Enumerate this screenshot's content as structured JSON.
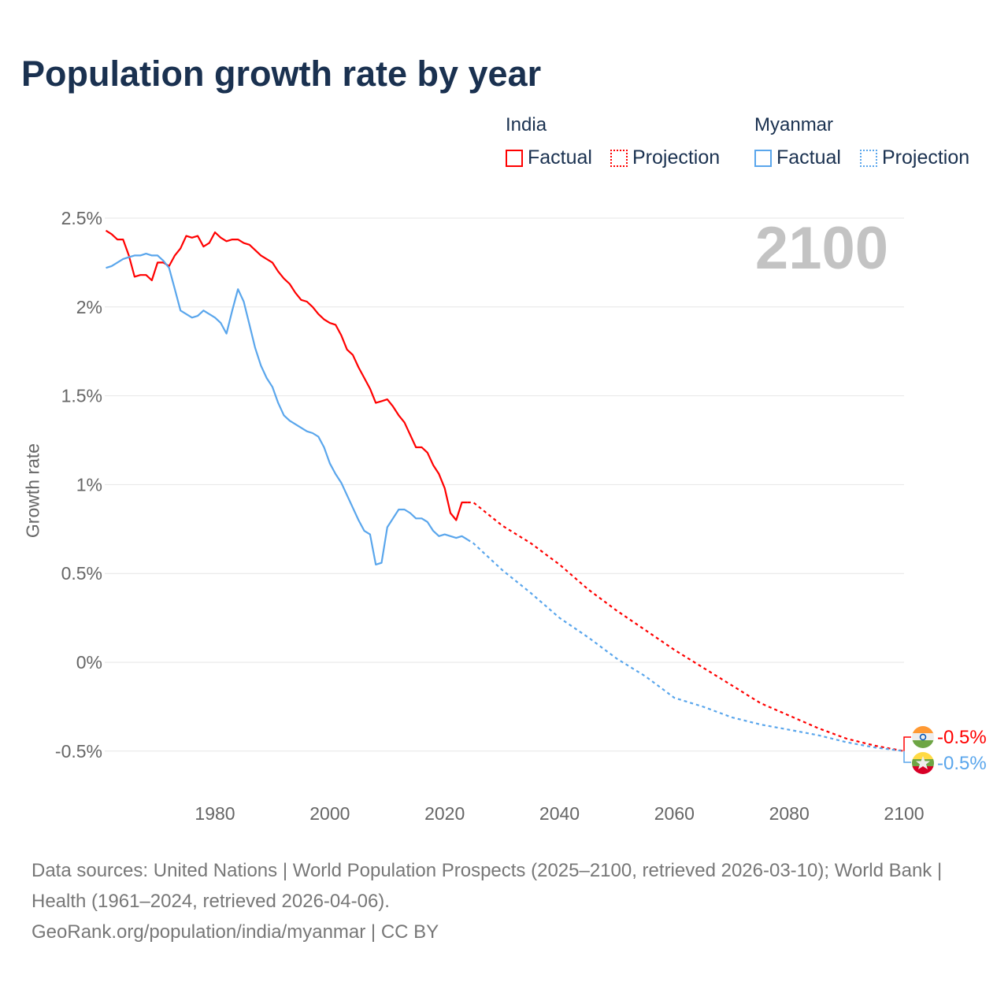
{
  "title": "Population growth rate by year",
  "year_label": "2100",
  "legend": {
    "groups": [
      {
        "name": "India",
        "factual": "Factual",
        "projection": "Projection",
        "color": "#ff0000"
      },
      {
        "name": "Myanmar",
        "factual": "Factual",
        "projection": "Projection",
        "color": "#5aa6ec"
      }
    ]
  },
  "end_labels": {
    "india": "-0.5%",
    "myanmar": "-0.5%"
  },
  "footer": {
    "line1": "Data sources: United Nations | World Population Prospects (2025–2100, retrieved 2026-03-10); World Bank | Health (1961–2024, retrieved 2026-04-06).",
    "line2": "GeoRank.org/population/india/myanmar | CC BY"
  },
  "chart_data": {
    "type": "line",
    "title": "Population growth rate by year",
    "ylabel": "Growth rate",
    "xlabel": "",
    "xlim": [
      1961,
      2100
    ],
    "ylim": [
      -0.7,
      2.6
    ],
    "x_ticks": [
      1980,
      2000,
      2020,
      2040,
      2060,
      2080,
      2100
    ],
    "y_ticks": [
      {
        "v": 2.5,
        "l": "2.5%"
      },
      {
        "v": 2,
        "l": "2%"
      },
      {
        "v": 1.5,
        "l": "1.5%"
      },
      {
        "v": 1,
        "l": "1%"
      },
      {
        "v": 0.5,
        "l": "0.5%"
      },
      {
        "v": 0,
        "l": "0%"
      },
      {
        "v": -0.5,
        "l": "-0.5%"
      }
    ],
    "grid": true,
    "series": [
      {
        "name": "India Factual",
        "color": "#ff0000",
        "dashed": false,
        "start": 1961,
        "values": [
          2.43,
          2.41,
          2.38,
          2.38,
          2.29,
          2.17,
          2.18,
          2.18,
          2.15,
          2.25,
          2.25,
          2.23,
          2.29,
          2.33,
          2.4,
          2.39,
          2.4,
          2.34,
          2.36,
          2.42,
          2.39,
          2.37,
          2.38,
          2.38,
          2.36,
          2.35,
          2.32,
          2.29,
          2.27,
          2.25,
          2.2,
          2.16,
          2.13,
          2.08,
          2.04,
          2.03,
          2.0,
          1.96,
          1.93,
          1.91,
          1.9,
          1.84,
          1.76,
          1.73,
          1.66,
          1.6,
          1.54,
          1.46,
          1.47,
          1.48,
          1.44,
          1.39,
          1.35,
          1.28,
          1.21,
          1.21,
          1.18,
          1.11,
          1.06,
          0.98,
          0.84,
          0.8,
          0.9,
          0.9
        ]
      },
      {
        "name": "India Projection",
        "color": "#ff0000",
        "dashed": true,
        "x": [
          2024,
          2025,
          2030,
          2035,
          2040,
          2045,
          2050,
          2055,
          2060,
          2065,
          2070,
          2075,
          2080,
          2085,
          2090,
          2095,
          2100
        ],
        "values": [
          0.9,
          0.9,
          0.77,
          0.67,
          0.55,
          0.41,
          0.29,
          0.18,
          0.07,
          -0.03,
          -0.13,
          -0.23,
          -0.3,
          -0.37,
          -0.43,
          -0.47,
          -0.5
        ]
      },
      {
        "name": "Myanmar Factual",
        "color": "#5aa6ec",
        "dashed": false,
        "start": 1961,
        "values": [
          2.22,
          2.23,
          2.25,
          2.27,
          2.28,
          2.29,
          2.29,
          2.3,
          2.29,
          2.29,
          2.26,
          2.22,
          2.1,
          1.98,
          1.96,
          1.94,
          1.95,
          1.98,
          1.96,
          1.94,
          1.91,
          1.85,
          1.98,
          2.1,
          2.03,
          1.9,
          1.77,
          1.67,
          1.6,
          1.55,
          1.46,
          1.39,
          1.36,
          1.34,
          1.32,
          1.3,
          1.29,
          1.27,
          1.21,
          1.12,
          1.06,
          1.01,
          0.94,
          0.87,
          0.8,
          0.74,
          0.72,
          0.55,
          0.56,
          0.76,
          0.81,
          0.86,
          0.86,
          0.84,
          0.81,
          0.81,
          0.79,
          0.74,
          0.71,
          0.72,
          0.71,
          0.7,
          0.71,
          0.69
        ]
      },
      {
        "name": "Myanmar Projection",
        "color": "#5aa6ec",
        "dashed": true,
        "x": [
          2024,
          2025,
          2030,
          2035,
          2040,
          2045,
          2050,
          2055,
          2060,
          2065,
          2070,
          2075,
          2080,
          2085,
          2090,
          2095,
          2100
        ],
        "values": [
          0.69,
          0.67,
          0.52,
          0.39,
          0.25,
          0.14,
          0.02,
          -0.08,
          -0.2,
          -0.25,
          -0.31,
          -0.35,
          -0.38,
          -0.41,
          -0.45,
          -0.48,
          -0.5
        ]
      }
    ]
  }
}
